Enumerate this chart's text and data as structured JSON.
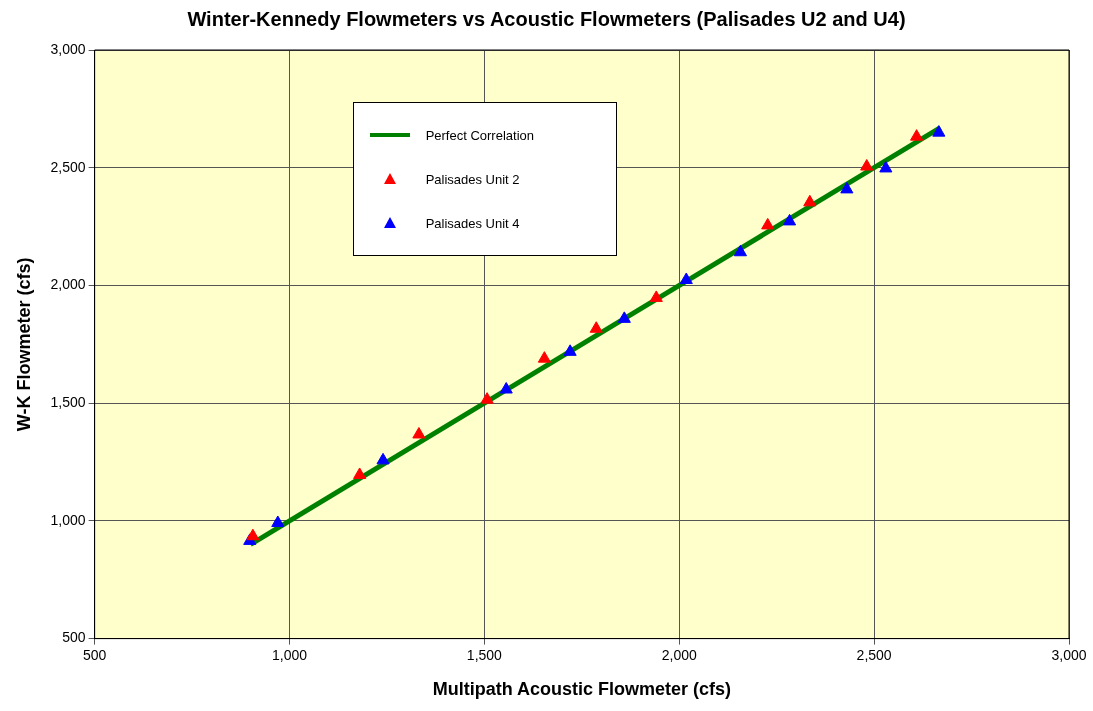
{
  "chart_data": {
    "type": "scatter",
    "title": "Winter-Kennedy Flowmeters vs Acoustic Flowmeters (Palisades U2 and U4)",
    "xlabel": "Multipath Acoustic Flowmeter (cfs)",
    "ylabel": "W-K Flowmeter (cfs)",
    "xlim": [
      500,
      3000
    ],
    "xticks": [
      {
        "value": 500,
        "label": "500"
      },
      {
        "value": 1000,
        "label": "1,000"
      },
      {
        "value": 1500,
        "label": "1,500"
      },
      {
        "value": 2000,
        "label": "2,000"
      },
      {
        "value": 2500,
        "label": "2,500"
      },
      {
        "value": 3000,
        "label": "3,000"
      }
    ],
    "ylim": [
      500,
      3000
    ],
    "yticks": [
      {
        "value": 500,
        "label": "500"
      },
      {
        "value": 1000,
        "label": "1,000"
      },
      {
        "value": 1500,
        "label": "1,500"
      },
      {
        "value": 2000,
        "label": "2,000"
      },
      {
        "value": 2500,
        "label": "2,500"
      },
      {
        "value": 3000,
        "label": "3,000"
      }
    ],
    "grid": true,
    "legend": "top left",
    "marker": "triangle",
    "series": [
      {
        "name": "Perfect Correlation",
        "type": "line",
        "color": "#008000",
        "marker": "none",
        "x": [
          900,
          2670
        ],
        "values": [
          900,
          2670
        ]
      },
      {
        "name": "Palisades Unit 2",
        "color": "#ff0000",
        "x": [
          906,
          1180,
          1332,
          1507,
          1654,
          1787,
          1941,
          2227,
          2335,
          2481,
          2609
        ],
        "values": [
          935,
          1195,
          1367,
          1515,
          1689,
          1816,
          1947,
          2255,
          2353,
          2505,
          2632
        ]
      },
      {
        "name": "Palisades Unit 4",
        "color": "#0000ff",
        "x": [
          898,
          970,
          1240,
          1556,
          1720,
          1859,
          2018,
          2157,
          2283,
          2430,
          2530,
          2666
        ],
        "values": [
          915,
          991,
          1257,
          1558,
          1718,
          1858,
          2023,
          2141,
          2272,
          2408,
          2497,
          2649
        ]
      }
    ]
  }
}
